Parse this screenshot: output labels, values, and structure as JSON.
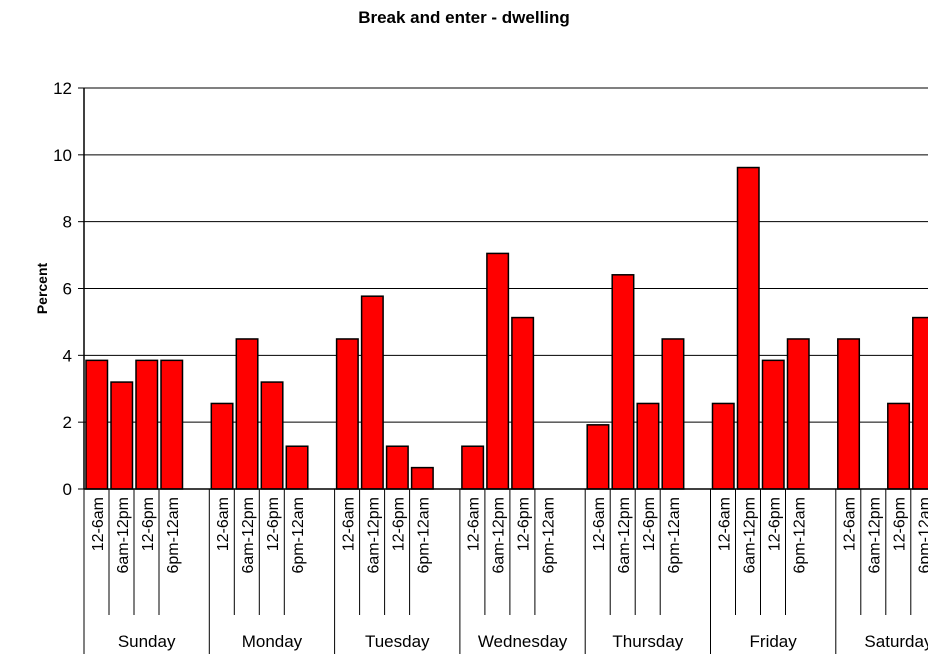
{
  "chart_data": {
    "type": "bar",
    "title": "Break and enter - dwelling",
    "xlabel": "",
    "ylabel": "Percent",
    "ylim": [
      0,
      12
    ],
    "yticks": [
      0,
      2,
      4,
      6,
      8,
      10,
      12
    ],
    "grid": true,
    "legend": "none",
    "bar_color": "#ff0000",
    "days": [
      "Sunday",
      "Monday",
      "Tuesday",
      "Wednesday",
      "Thursday",
      "Friday",
      "Saturday"
    ],
    "periods": [
      "12-6am",
      "6am-12pm",
      "12-6pm",
      "6pm-12am"
    ],
    "series": [
      {
        "values": [
          3.85,
          3.2,
          3.85,
          3.85,
          2.56,
          4.49,
          3.2,
          1.28,
          4.49,
          5.77,
          1.28,
          0.64,
          1.28,
          7.05,
          5.13,
          0,
          1.92,
          6.41,
          2.56,
          4.49,
          2.56,
          9.62,
          3.85,
          4.49,
          4.49,
          0,
          2.56,
          5.13
        ]
      }
    ]
  }
}
